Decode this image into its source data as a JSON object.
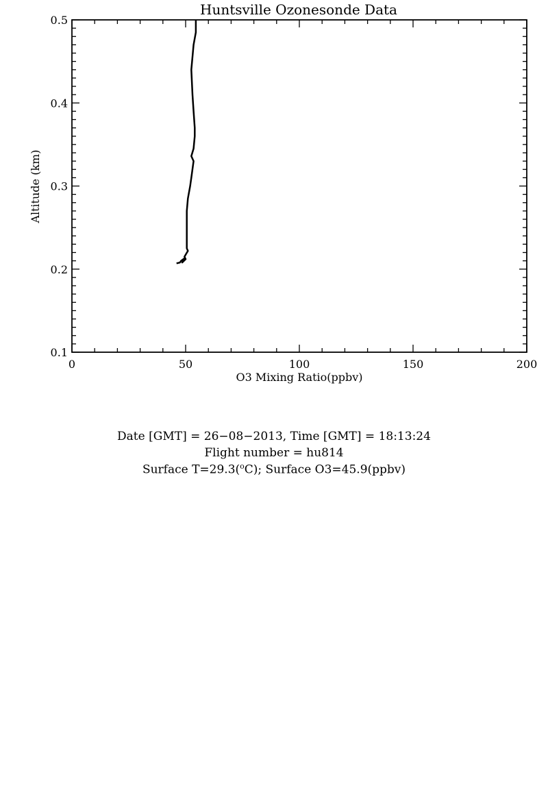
{
  "chart_data": {
    "type": "line",
    "title": "Huntsville Ozonesonde Data",
    "xlabel": "O3 Mixing Ratio(ppbv)",
    "ylabel": "Altitude (km)",
    "xlim": [
      0,
      200
    ],
    "ylim": [
      0.1,
      0.5
    ],
    "xticks": [
      "0",
      "50",
      "100",
      "150",
      "200"
    ],
    "yticks": [
      "0.1",
      "0.2",
      "0.3",
      "0.4",
      "0.5"
    ],
    "grid": false,
    "legend": "none",
    "color": "#000000",
    "series": [
      {
        "x": [
          46.0,
          47.5,
          48.0,
          49.5,
          48.5,
          50.0,
          49.5,
          51.0,
          50.5,
          50.5,
          51.0,
          52.0,
          52.5,
          53.5,
          52.5,
          53.5,
          54.0,
          54.0,
          53.5,
          53.0,
          52.5,
          53.5,
          54.5,
          54.5
        ],
        "y": [
          0.207,
          0.208,
          0.21,
          0.213,
          0.208,
          0.212,
          0.215,
          0.222,
          0.225,
          0.27,
          0.285,
          0.3,
          0.31,
          0.33,
          0.336,
          0.345,
          0.36,
          0.37,
          0.39,
          0.41,
          0.44,
          0.47,
          0.485,
          0.5
        ]
      }
    ]
  },
  "info": {
    "date_prefix": "Date [GMT] = 26−08−2013,  Time [GMT] = 18:13:24",
    "flight": "Flight number = hu814",
    "surface_prefix": "Surface T=29.3(",
    "surface_sup": "o",
    "surface_suffix": "C); Surface O3=45.9(ppbv)"
  }
}
